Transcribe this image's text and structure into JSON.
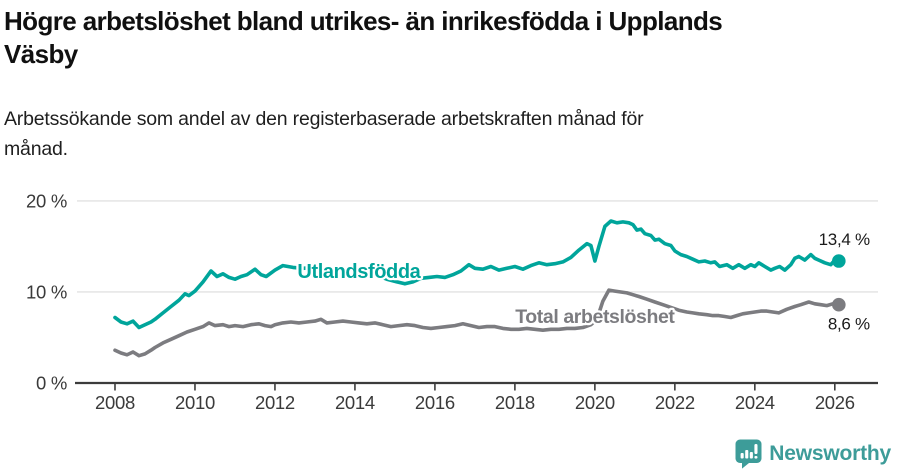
{
  "header": {
    "title": "Högre arbetslöshet bland utrikes- än inrikesfödda i Upplands Väsby",
    "title_lines": [
      "Högre arbetslöshet bland utrikes- än inrikesfödda i Upplands",
      "Väsby"
    ],
    "subtitle": "Arbetssökande som andel av den registerbaserade arbetskraften månad för månad.",
    "subtitle_lines": [
      "Arbetssökande som andel av den registerbaserade arbetskraften månad för",
      "månad."
    ]
  },
  "footer": {
    "brand": "Newsworthy",
    "brand_color": "#3d9c99",
    "logo_icon": "newsworthy-bar-chart-speech-bubble"
  },
  "colors": {
    "utlandsfodda_line": "#00a59b",
    "total_line": "#7c7c80",
    "axis": "#3c3c3c",
    "grid": "#e2e2e2",
    "tick_text": "#3a3a3a",
    "end_label_text": "#1a1a1a",
    "background": "#ffffff"
  },
  "chart_data": {
    "type": "line",
    "title": "Högre arbetslöshet bland utrikes- än inrikesfödda i Upplands Väsby",
    "subtitle": "Arbetssökande som andel av den registerbaserade arbetskraften månad för månad.",
    "xlabel": "",
    "ylabel": "",
    "grid": "horizontal",
    "legend_position": "inline-labels",
    "x_axis": {
      "range": [
        2007.0,
        2027.08
      ],
      "ticks": [
        2008,
        2010,
        2012,
        2014,
        2016,
        2018,
        2020,
        2022,
        2024,
        2026
      ],
      "tick_labels": [
        "2008",
        "2010",
        "2012",
        "2014",
        "2016",
        "2018",
        "2020",
        "2022",
        "2024",
        "2026"
      ]
    },
    "y_axis": {
      "range": [
        0,
        21.2
      ],
      "ticks": [
        0,
        10,
        20
      ],
      "tick_labels": [
        "0 %",
        "10 %",
        "20 %"
      ]
    },
    "series": [
      {
        "id": "utlandsfodda",
        "name": "Utlandsfödda",
        "color": "#00a59b",
        "end_label": "13,4 %",
        "end_label_side": "above",
        "end_value": 13.4,
        "label_anchor": {
          "x": 2014.1,
          "y": 12.35
        },
        "label_font_size": 20,
        "points": [
          [
            2008.0,
            7.2
          ],
          [
            2008.15,
            6.7
          ],
          [
            2008.3,
            6.5
          ],
          [
            2008.45,
            6.8
          ],
          [
            2008.6,
            6.1
          ],
          [
            2008.75,
            6.4
          ],
          [
            2008.9,
            6.7
          ],
          [
            2009.0,
            7.0
          ],
          [
            2009.2,
            7.7
          ],
          [
            2009.4,
            8.4
          ],
          [
            2009.6,
            9.1
          ],
          [
            2009.75,
            9.8
          ],
          [
            2009.85,
            9.6
          ],
          [
            2010.0,
            10.1
          ],
          [
            2010.2,
            11.1
          ],
          [
            2010.4,
            12.3
          ],
          [
            2010.55,
            11.7
          ],
          [
            2010.7,
            12.0
          ],
          [
            2010.85,
            11.6
          ],
          [
            2011.0,
            11.4
          ],
          [
            2011.15,
            11.7
          ],
          [
            2011.3,
            11.9
          ],
          [
            2011.5,
            12.5
          ],
          [
            2011.65,
            11.9
          ],
          [
            2011.78,
            11.7
          ],
          [
            2012.0,
            12.4
          ],
          [
            2012.2,
            12.9
          ],
          [
            2012.45,
            12.7
          ],
          [
            2012.7,
            12.6
          ],
          [
            2013.0,
            12.7
          ],
          [
            2013.3,
            12.5
          ],
          [
            2013.6,
            12.4
          ],
          [
            2013.9,
            12.3
          ],
          [
            2014.2,
            12.1
          ],
          [
            2014.5,
            11.9
          ],
          [
            2014.8,
            11.4
          ],
          [
            2015.05,
            11.1
          ],
          [
            2015.25,
            10.9
          ],
          [
            2015.45,
            11.1
          ],
          [
            2015.65,
            11.5
          ],
          [
            2015.85,
            11.6
          ],
          [
            2016.05,
            11.7
          ],
          [
            2016.25,
            11.6
          ],
          [
            2016.45,
            11.9
          ],
          [
            2016.65,
            12.3
          ],
          [
            2016.85,
            13.0
          ],
          [
            2017.0,
            12.6
          ],
          [
            2017.2,
            12.5
          ],
          [
            2017.4,
            12.8
          ],
          [
            2017.6,
            12.4
          ],
          [
            2017.8,
            12.6
          ],
          [
            2018.0,
            12.8
          ],
          [
            2018.2,
            12.5
          ],
          [
            2018.4,
            12.9
          ],
          [
            2018.6,
            13.2
          ],
          [
            2018.8,
            13.0
          ],
          [
            2019.0,
            13.1
          ],
          [
            2019.2,
            13.3
          ],
          [
            2019.4,
            13.8
          ],
          [
            2019.6,
            14.6
          ],
          [
            2019.8,
            15.3
          ],
          [
            2019.9,
            15.1
          ],
          [
            2020.0,
            13.4
          ],
          [
            2020.1,
            15.0
          ],
          [
            2020.25,
            17.2
          ],
          [
            2020.4,
            17.8
          ],
          [
            2020.55,
            17.6
          ],
          [
            2020.7,
            17.7
          ],
          [
            2020.85,
            17.6
          ],
          [
            2020.95,
            17.4
          ],
          [
            2021.05,
            16.8
          ],
          [
            2021.15,
            16.9
          ],
          [
            2021.25,
            16.4
          ],
          [
            2021.4,
            16.2
          ],
          [
            2021.5,
            15.7
          ],
          [
            2021.6,
            15.8
          ],
          [
            2021.75,
            15.3
          ],
          [
            2021.9,
            15.1
          ],
          [
            2022.0,
            14.5
          ],
          [
            2022.15,
            14.1
          ],
          [
            2022.3,
            13.9
          ],
          [
            2022.45,
            13.6
          ],
          [
            2022.6,
            13.3
          ],
          [
            2022.75,
            13.4
          ],
          [
            2022.9,
            13.2
          ],
          [
            2023.0,
            13.3
          ],
          [
            2023.12,
            12.8
          ],
          [
            2023.3,
            13.0
          ],
          [
            2023.45,
            12.6
          ],
          [
            2023.6,
            13.0
          ],
          [
            2023.75,
            12.6
          ],
          [
            2023.9,
            13.0
          ],
          [
            2024.0,
            12.8
          ],
          [
            2024.1,
            13.2
          ],
          [
            2024.25,
            12.8
          ],
          [
            2024.4,
            12.4
          ],
          [
            2024.5,
            12.6
          ],
          [
            2024.62,
            12.8
          ],
          [
            2024.75,
            12.4
          ],
          [
            2024.9,
            13.0
          ],
          [
            2025.0,
            13.7
          ],
          [
            2025.1,
            13.9
          ],
          [
            2025.25,
            13.5
          ],
          [
            2025.4,
            14.1
          ],
          [
            2025.5,
            13.7
          ],
          [
            2025.6,
            13.5
          ],
          [
            2025.75,
            13.2
          ],
          [
            2025.9,
            13.0
          ],
          [
            2026.0,
            13.5
          ],
          [
            2026.1,
            13.4
          ]
        ]
      },
      {
        "id": "total",
        "name": "Total arbetslöshet",
        "color": "#7c7c80",
        "end_label": "8,6 %",
        "end_label_side": "below",
        "end_value": 8.6,
        "label_anchor": {
          "x": 2020.0,
          "y": 7.35
        },
        "label_font_size": 19.5,
        "points": [
          [
            2008.0,
            3.6
          ],
          [
            2008.15,
            3.3
          ],
          [
            2008.3,
            3.1
          ],
          [
            2008.45,
            3.4
          ],
          [
            2008.6,
            3.0
          ],
          [
            2008.75,
            3.2
          ],
          [
            2008.9,
            3.6
          ],
          [
            2009.0,
            3.9
          ],
          [
            2009.2,
            4.4
          ],
          [
            2009.4,
            4.8
          ],
          [
            2009.6,
            5.2
          ],
          [
            2009.8,
            5.6
          ],
          [
            2010.0,
            5.9
          ],
          [
            2010.2,
            6.2
          ],
          [
            2010.35,
            6.6
          ],
          [
            2010.5,
            6.3
          ],
          [
            2010.7,
            6.4
          ],
          [
            2010.85,
            6.2
          ],
          [
            2011.0,
            6.3
          ],
          [
            2011.2,
            6.2
          ],
          [
            2011.4,
            6.4
          ],
          [
            2011.6,
            6.5
          ],
          [
            2011.75,
            6.3
          ],
          [
            2011.9,
            6.2
          ],
          [
            2012.0,
            6.4
          ],
          [
            2012.2,
            6.6
          ],
          [
            2012.4,
            6.7
          ],
          [
            2012.6,
            6.6
          ],
          [
            2012.8,
            6.7
          ],
          [
            2013.0,
            6.8
          ],
          [
            2013.15,
            7.0
          ],
          [
            2013.3,
            6.6
          ],
          [
            2013.5,
            6.7
          ],
          [
            2013.7,
            6.8
          ],
          [
            2013.9,
            6.7
          ],
          [
            2014.1,
            6.6
          ],
          [
            2014.3,
            6.5
          ],
          [
            2014.5,
            6.6
          ],
          [
            2014.7,
            6.4
          ],
          [
            2014.9,
            6.2
          ],
          [
            2015.1,
            6.3
          ],
          [
            2015.3,
            6.4
          ],
          [
            2015.5,
            6.3
          ],
          [
            2015.7,
            6.1
          ],
          [
            2015.9,
            6.0
          ],
          [
            2016.1,
            6.1
          ],
          [
            2016.3,
            6.2
          ],
          [
            2016.5,
            6.3
          ],
          [
            2016.7,
            6.5
          ],
          [
            2016.9,
            6.3
          ],
          [
            2017.1,
            6.1
          ],
          [
            2017.3,
            6.2
          ],
          [
            2017.5,
            6.2
          ],
          [
            2017.7,
            6.0
          ],
          [
            2017.9,
            5.9
          ],
          [
            2018.1,
            5.9
          ],
          [
            2018.3,
            6.0
          ],
          [
            2018.5,
            5.9
          ],
          [
            2018.7,
            5.8
          ],
          [
            2018.9,
            5.9
          ],
          [
            2019.1,
            5.9
          ],
          [
            2019.3,
            6.0
          ],
          [
            2019.5,
            6.0
          ],
          [
            2019.7,
            6.1
          ],
          [
            2019.9,
            6.4
          ],
          [
            2020.05,
            7.0
          ],
          [
            2020.2,
            9.0
          ],
          [
            2020.35,
            10.2
          ],
          [
            2020.5,
            10.1
          ],
          [
            2020.65,
            10.0
          ],
          [
            2020.8,
            9.9
          ],
          [
            2020.95,
            9.7
          ],
          [
            2021.1,
            9.5
          ],
          [
            2021.3,
            9.2
          ],
          [
            2021.5,
            8.9
          ],
          [
            2021.7,
            8.6
          ],
          [
            2021.9,
            8.3
          ],
          [
            2022.1,
            8.0
          ],
          [
            2022.3,
            7.8
          ],
          [
            2022.45,
            7.7
          ],
          [
            2022.6,
            7.6
          ],
          [
            2022.8,
            7.5
          ],
          [
            2022.95,
            7.4
          ],
          [
            2023.1,
            7.4
          ],
          [
            2023.25,
            7.3
          ],
          [
            2023.4,
            7.2
          ],
          [
            2023.55,
            7.4
          ],
          [
            2023.7,
            7.6
          ],
          [
            2023.85,
            7.7
          ],
          [
            2024.0,
            7.8
          ],
          [
            2024.15,
            7.9
          ],
          [
            2024.3,
            7.9
          ],
          [
            2024.45,
            7.8
          ],
          [
            2024.6,
            7.7
          ],
          [
            2024.8,
            8.1
          ],
          [
            2025.0,
            8.4
          ],
          [
            2025.15,
            8.6
          ],
          [
            2025.35,
            8.9
          ],
          [
            2025.5,
            8.7
          ],
          [
            2025.65,
            8.6
          ],
          [
            2025.8,
            8.5
          ],
          [
            2025.95,
            8.7
          ],
          [
            2026.1,
            8.6
          ]
        ]
      }
    ]
  }
}
